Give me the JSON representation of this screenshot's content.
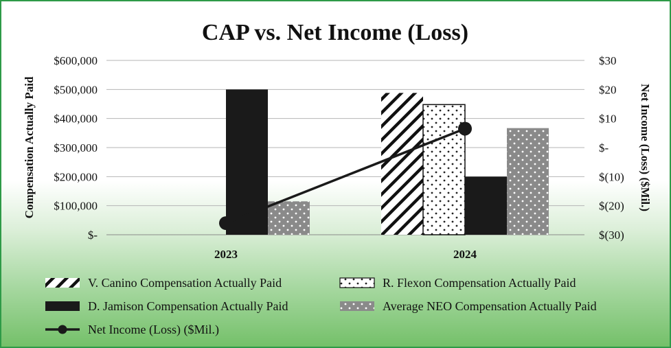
{
  "chart_data": {
    "type": "bar",
    "title": "CAP vs. Net Income (Loss)",
    "ylabel": "Compensation Actually Paid",
    "y2label": "Net Income (Loss) ($Mil.)",
    "categories": [
      "2023",
      "2024"
    ],
    "ylim": [
      0,
      600000
    ],
    "y2lim": [
      -30,
      30
    ],
    "yticks": [
      "$-",
      "$100,000",
      "$200,000",
      "$300,000",
      "$400,000",
      "$500,000",
      "$600,000"
    ],
    "y2ticks": [
      "$(30)",
      "$(20)",
      "$(10)",
      "$-",
      "$10",
      "$20",
      "$30"
    ],
    "grid": true,
    "legend_position": "bottom",
    "series": [
      {
        "name": "V. Canino Compensation Actually Paid",
        "values": [
          0,
          488000
        ],
        "pattern": "diagonal-hatch",
        "color": "#111111"
      },
      {
        "name": "R. Flexon Compensation Actually Paid",
        "values": [
          0,
          448000
        ],
        "pattern": "white-dots",
        "color": "#111111"
      },
      {
        "name": "D. Jamison Compensation Actually Paid",
        "values": [
          500000,
          200000
        ],
        "pattern": "solid",
        "color": "#1a1a1a"
      },
      {
        "name": "Average NEO Compensation Actually Paid",
        "values": [
          115000,
          367000
        ],
        "pattern": "gray-dots",
        "color": "#8a8a8a"
      }
    ],
    "line_series": {
      "name": "Net Income (Loss) ($Mil.)",
      "axis": "right",
      "values": [
        -26,
        6.5
      ],
      "color": "#1a1a1a"
    }
  }
}
